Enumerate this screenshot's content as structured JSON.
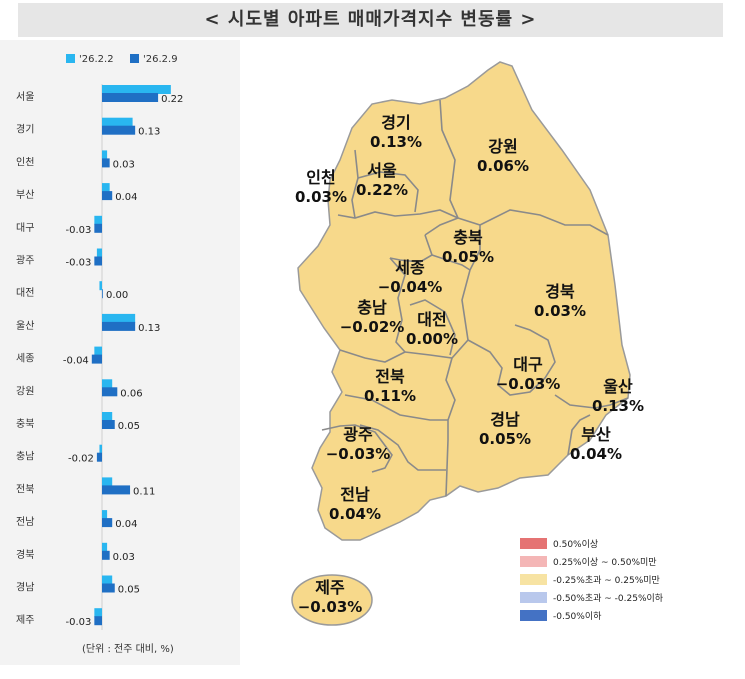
{
  "title": "< 시도별 아파트 매매가격지수 변동률 >",
  "unit_note": "(단위 : 전주 대비, %)",
  "chart_data": [
    {
      "type": "bar",
      "orientation": "horizontal",
      "categories": [
        "서울",
        "경기",
        "인천",
        "부산",
        "대구",
        "광주",
        "대전",
        "울산",
        "세종",
        "강원",
        "충북",
        "충남",
        "전북",
        "전남",
        "경북",
        "경남",
        "제주"
      ],
      "series": [
        {
          "name": "'26.2.2",
          "color": "#29b6f0",
          "values": [
            0.27,
            0.12,
            0.02,
            0.03,
            -0.03,
            -0.02,
            -0.01,
            0.13,
            -0.03,
            0.04,
            0.04,
            -0.01,
            0.04,
            0.02,
            0.02,
            0.04,
            -0.03
          ]
        },
        {
          "name": "'26.2.9",
          "color": "#1f6fc4",
          "values": [
            0.22,
            0.13,
            0.03,
            0.04,
            -0.03,
            -0.03,
            0.0,
            0.13,
            -0.04,
            0.06,
            0.05,
            -0.02,
            0.11,
            0.04,
            0.03,
            0.05,
            -0.03
          ]
        }
      ],
      "value_labels": [
        "0.22",
        "0.13",
        "0.03",
        "0.04",
        "-0.03",
        "-0.03",
        "0.00",
        "0.13",
        "-0.04",
        "0.06",
        "0.05",
        "-0.02",
        "0.11",
        "0.04",
        "0.03",
        "0.05",
        "-0.03"
      ]
    },
    {
      "type": "map",
      "regions": [
        {
          "name": "경기",
          "value": "0.13%"
        },
        {
          "name": "인천",
          "value": "0.03%"
        },
        {
          "name": "서울",
          "value": "0.22%"
        },
        {
          "name": "강원",
          "value": "0.06%"
        },
        {
          "name": "충북",
          "value": "0.05%"
        },
        {
          "name": "세종",
          "value": "−0.04%"
        },
        {
          "name": "충남",
          "value": "−0.02%"
        },
        {
          "name": "대전",
          "value": "0.00%"
        },
        {
          "name": "경북",
          "value": "0.03%"
        },
        {
          "name": "대구",
          "value": "−0.03%"
        },
        {
          "name": "울산",
          "value": "0.13%"
        },
        {
          "name": "전북",
          "value": "0.11%"
        },
        {
          "name": "경남",
          "value": "0.05%"
        },
        {
          "name": "부산",
          "value": "0.04%"
        },
        {
          "name": "광주",
          "value": "−0.03%"
        },
        {
          "name": "전남",
          "value": "0.04%"
        },
        {
          "name": "제주",
          "value": "−0.03%"
        }
      ],
      "region_fill": "#f7d98b",
      "border_color": "#888888",
      "legend": [
        {
          "label": "0.50%이상",
          "color": "#e57373"
        },
        {
          "label": "0.25%이상 ~ 0.50%미만",
          "color": "#f4b6b6"
        },
        {
          "label": "-0.25%초과 ~ 0.25%미만",
          "color": "#f7e3a3"
        },
        {
          "label": "-0.50%초과 ~ -0.25%이하",
          "color": "#b9c8ec"
        },
        {
          "label": "-0.50%이하",
          "color": "#4472c4"
        }
      ]
    }
  ]
}
